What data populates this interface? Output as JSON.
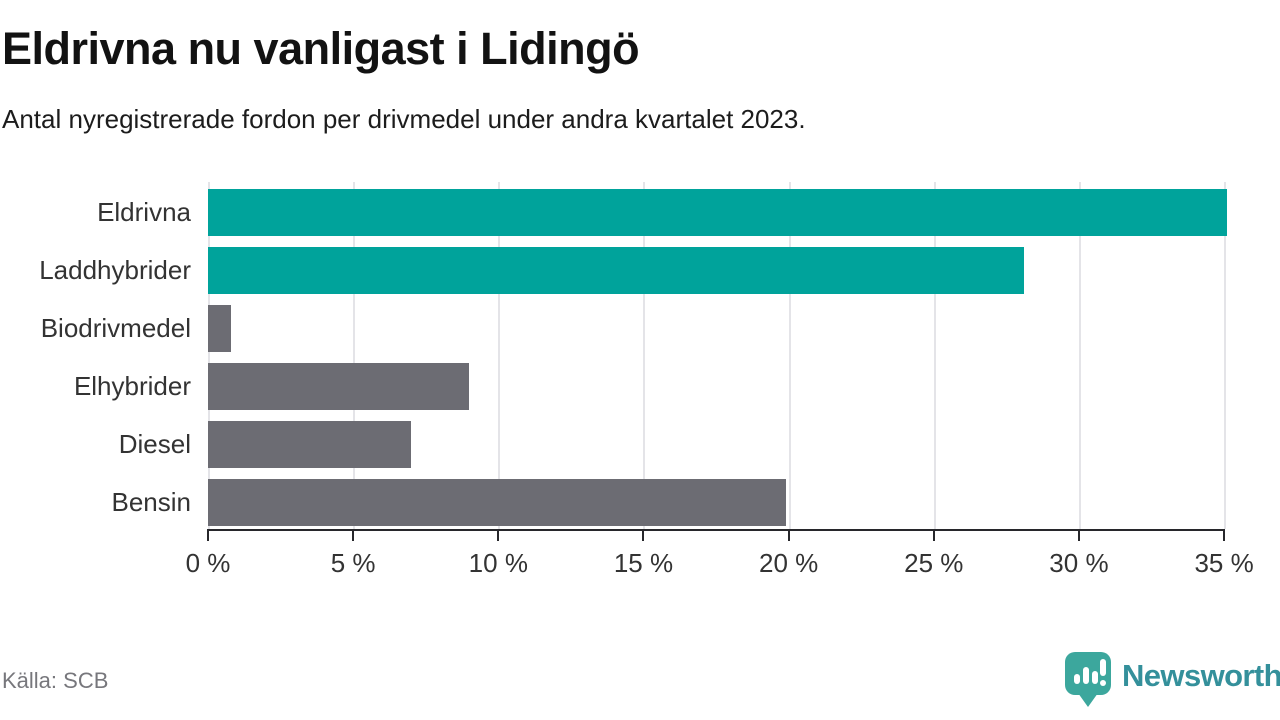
{
  "title": "Eldrivna nu vanligast i Lidingö",
  "subtitle": "Antal nyregistrerade fordon per drivmedel under andra kvartalet 2023.",
  "source": "Källa: SCB",
  "brand": {
    "name": "Newsworthy",
    "icon": "speech-bubble-bar-chart-icon",
    "icon_color": "#3CA79D",
    "text_color": "#34909B"
  },
  "colors": {
    "highlight_bar": "#00A39B",
    "default_bar": "#6C6C73",
    "axis": "#27272B",
    "grid": "#E4E4E8",
    "labels": "#333333",
    "title": "#121212",
    "source": "#77777C"
  },
  "chart_data": {
    "type": "bar",
    "orientation": "horizontal",
    "title": "Eldrivna nu vanligast i Lidingö",
    "subtitle": "Antal nyregistrerade fordon per drivmedel under andra kvartalet 2023.",
    "categories": [
      "Eldrivna",
      "Laddhybrider",
      "Biodrivmedel",
      "Elhybrider",
      "Diesel",
      "Bensin"
    ],
    "values": [
      35.1,
      28.1,
      0.8,
      9.0,
      7.0,
      19.9
    ],
    "unit": "%",
    "highlighted_categories": [
      "Eldrivna",
      "Laddhybrider"
    ],
    "xlim": [
      0,
      35.1
    ],
    "xtick_values": [
      0,
      5,
      10,
      15,
      20,
      25,
      30,
      35
    ],
    "xtick_labels": [
      "0 %",
      "5 %",
      "10 %",
      "15 %",
      "20 %",
      "25 %",
      "30 %",
      "35 %"
    ],
    "grid": true,
    "legend": false
  }
}
